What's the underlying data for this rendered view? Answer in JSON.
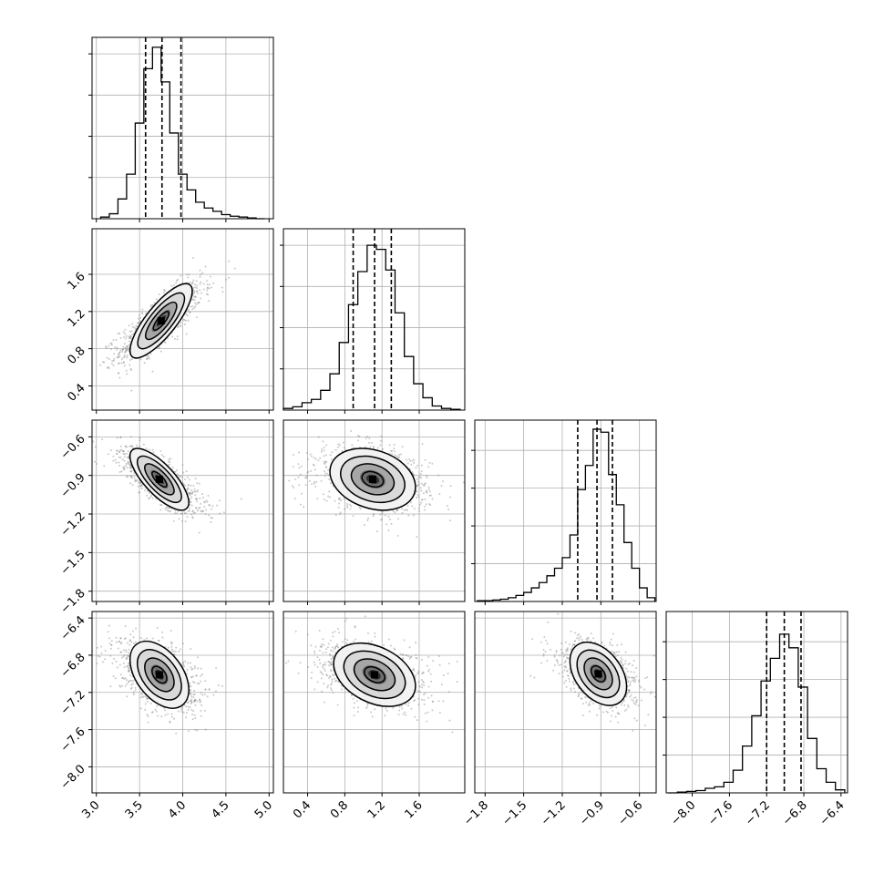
{
  "chart_data": {
    "type": "corner",
    "title": "",
    "grid": true,
    "parameters": [
      {
        "range": [
          2.95,
          5.05
        ],
        "ticks": [
          3.0,
          3.5,
          4.0,
          4.5,
          5.0
        ],
        "tick_labels": [
          "3.0",
          "3.5",
          "4.0",
          "4.5",
          "5.0"
        ],
        "quantiles": [
          3.57,
          3.76,
          3.98
        ],
        "histogram": {
          "bin_edges": [
            3.05,
            3.15,
            3.25,
            3.35,
            3.45,
            3.55,
            3.65,
            3.75,
            3.85,
            3.95,
            4.05,
            4.15,
            4.25,
            4.35,
            4.45,
            4.55,
            4.65,
            4.75,
            4.85,
            4.95
          ],
          "counts": [
            2,
            6,
            24,
            54,
            116,
            182,
            208,
            166,
            104,
            54,
            35,
            20,
            13,
            9,
            5,
            3,
            2,
            1,
            0
          ]
        },
        "hist_ylim": [
          0,
          220
        ],
        "hist_yticks": [
          50,
          100,
          150,
          200
        ]
      },
      {
        "range": [
          0.14,
          2.09
        ],
        "ticks": [
          0.4,
          0.8,
          1.2,
          1.6
        ],
        "tick_labels": [
          "0.4",
          "0.8",
          "1.2",
          "1.6"
        ],
        "quantiles": [
          0.89,
          1.12,
          1.3
        ],
        "histogram": {
          "bin_edges": [
            0.14,
            0.24,
            0.34,
            0.44,
            0.54,
            0.64,
            0.74,
            0.84,
            0.94,
            1.04,
            1.14,
            1.24,
            1.34,
            1.44,
            1.54,
            1.64,
            1.74,
            1.84,
            1.94,
            2.04
          ],
          "counts": [
            2,
            4,
            9,
            13,
            24,
            44,
            82,
            128,
            168,
            200,
            195,
            170,
            118,
            65,
            32,
            15,
            5,
            2,
            1
          ]
        },
        "hist_ylim": [
          0,
          220
        ],
        "hist_yticks": [
          50,
          100,
          150,
          200
        ]
      },
      {
        "range": [
          -1.88,
          -0.47
        ],
        "ticks": [
          -1.8,
          -1.5,
          -1.2,
          -0.9,
          -0.6
        ],
        "tick_labels": [
          "−1.8",
          "−1.5",
          "−1.2",
          "−0.9",
          "−0.6"
        ],
        "quantiles": [
          -1.08,
          -0.93,
          -0.81
        ],
        "histogram": {
          "bin_edges": [
            -1.86,
            -1.8,
            -1.74,
            -1.68,
            -1.62,
            -1.56,
            -1.5,
            -1.44,
            -1.38,
            -1.32,
            -1.26,
            -1.2,
            -1.14,
            -1.08,
            -1.02,
            -0.96,
            -0.9,
            -0.84,
            -0.78,
            -0.72,
            -0.66,
            -0.6,
            -0.54,
            -0.48
          ],
          "counts": [
            1,
            1,
            2,
            3,
            5,
            8,
            12,
            18,
            25,
            34,
            44,
            58,
            88,
            148,
            180,
            228,
            224,
            168,
            128,
            78,
            44,
            18,
            5
          ]
        },
        "hist_ylim": [
          0,
          240
        ],
        "hist_yticks": [
          50,
          100,
          150,
          200
        ]
      },
      {
        "range": [
          -8.28,
          -6.33
        ],
        "ticks": [
          -8.0,
          -7.6,
          -7.2,
          -6.8,
          -6.4
        ],
        "tick_labels": [
          "−8.0",
          "−7.6",
          "−7.2",
          "−6.8",
          "−6.4"
        ],
        "quantiles": [
          -7.2,
          -7.01,
          -6.83
        ],
        "histogram": {
          "bin_edges": [
            -8.26,
            -8.16,
            -8.06,
            -7.96,
            -7.86,
            -7.76,
            -7.66,
            -7.56,
            -7.46,
            -7.36,
            -7.26,
            -7.16,
            -7.06,
            -6.96,
            -6.86,
            -6.76,
            -6.66,
            -6.56,
            -6.46,
            -6.36
          ],
          "counts": [
            0,
            1,
            2,
            3,
            6,
            8,
            14,
            30,
            62,
            102,
            148,
            178,
            210,
            192,
            140,
            72,
            32,
            14,
            4
          ]
        },
        "hist_ylim": [
          0,
          240
        ],
        "hist_yticks": [
          50,
          100,
          150,
          200
        ]
      }
    ],
    "pairs": [
      {
        "x_param": 0,
        "y_param": 1,
        "mean": [
          3.75,
          1.1
        ],
        "sd": [
          0.18,
          0.2
        ],
        "corr": 0.8
      },
      {
        "x_param": 0,
        "y_param": 2,
        "mean": [
          3.73,
          -0.93
        ],
        "sd": [
          0.17,
          0.12
        ],
        "corr": -0.75
      },
      {
        "x_param": 1,
        "y_param": 2,
        "mean": [
          1.1,
          -0.93
        ],
        "sd": [
          0.23,
          0.12
        ],
        "corr": -0.25
      },
      {
        "x_param": 0,
        "y_param": 3,
        "mean": [
          3.73,
          -7.01
        ],
        "sd": [
          0.17,
          0.18
        ],
        "corr": -0.45
      },
      {
        "x_param": 1,
        "y_param": 3,
        "mean": [
          1.12,
          -7.01
        ],
        "sd": [
          0.22,
          0.17
        ],
        "corr": -0.35
      },
      {
        "x_param": 2,
        "y_param": 3,
        "mean": [
          -0.92,
          -7.0
        ],
        "sd": [
          0.11,
          0.17
        ],
        "corr": -0.4
      }
    ],
    "contour_levels_sigma": [
      0.5,
      1.0,
      1.5,
      2.0
    ]
  }
}
